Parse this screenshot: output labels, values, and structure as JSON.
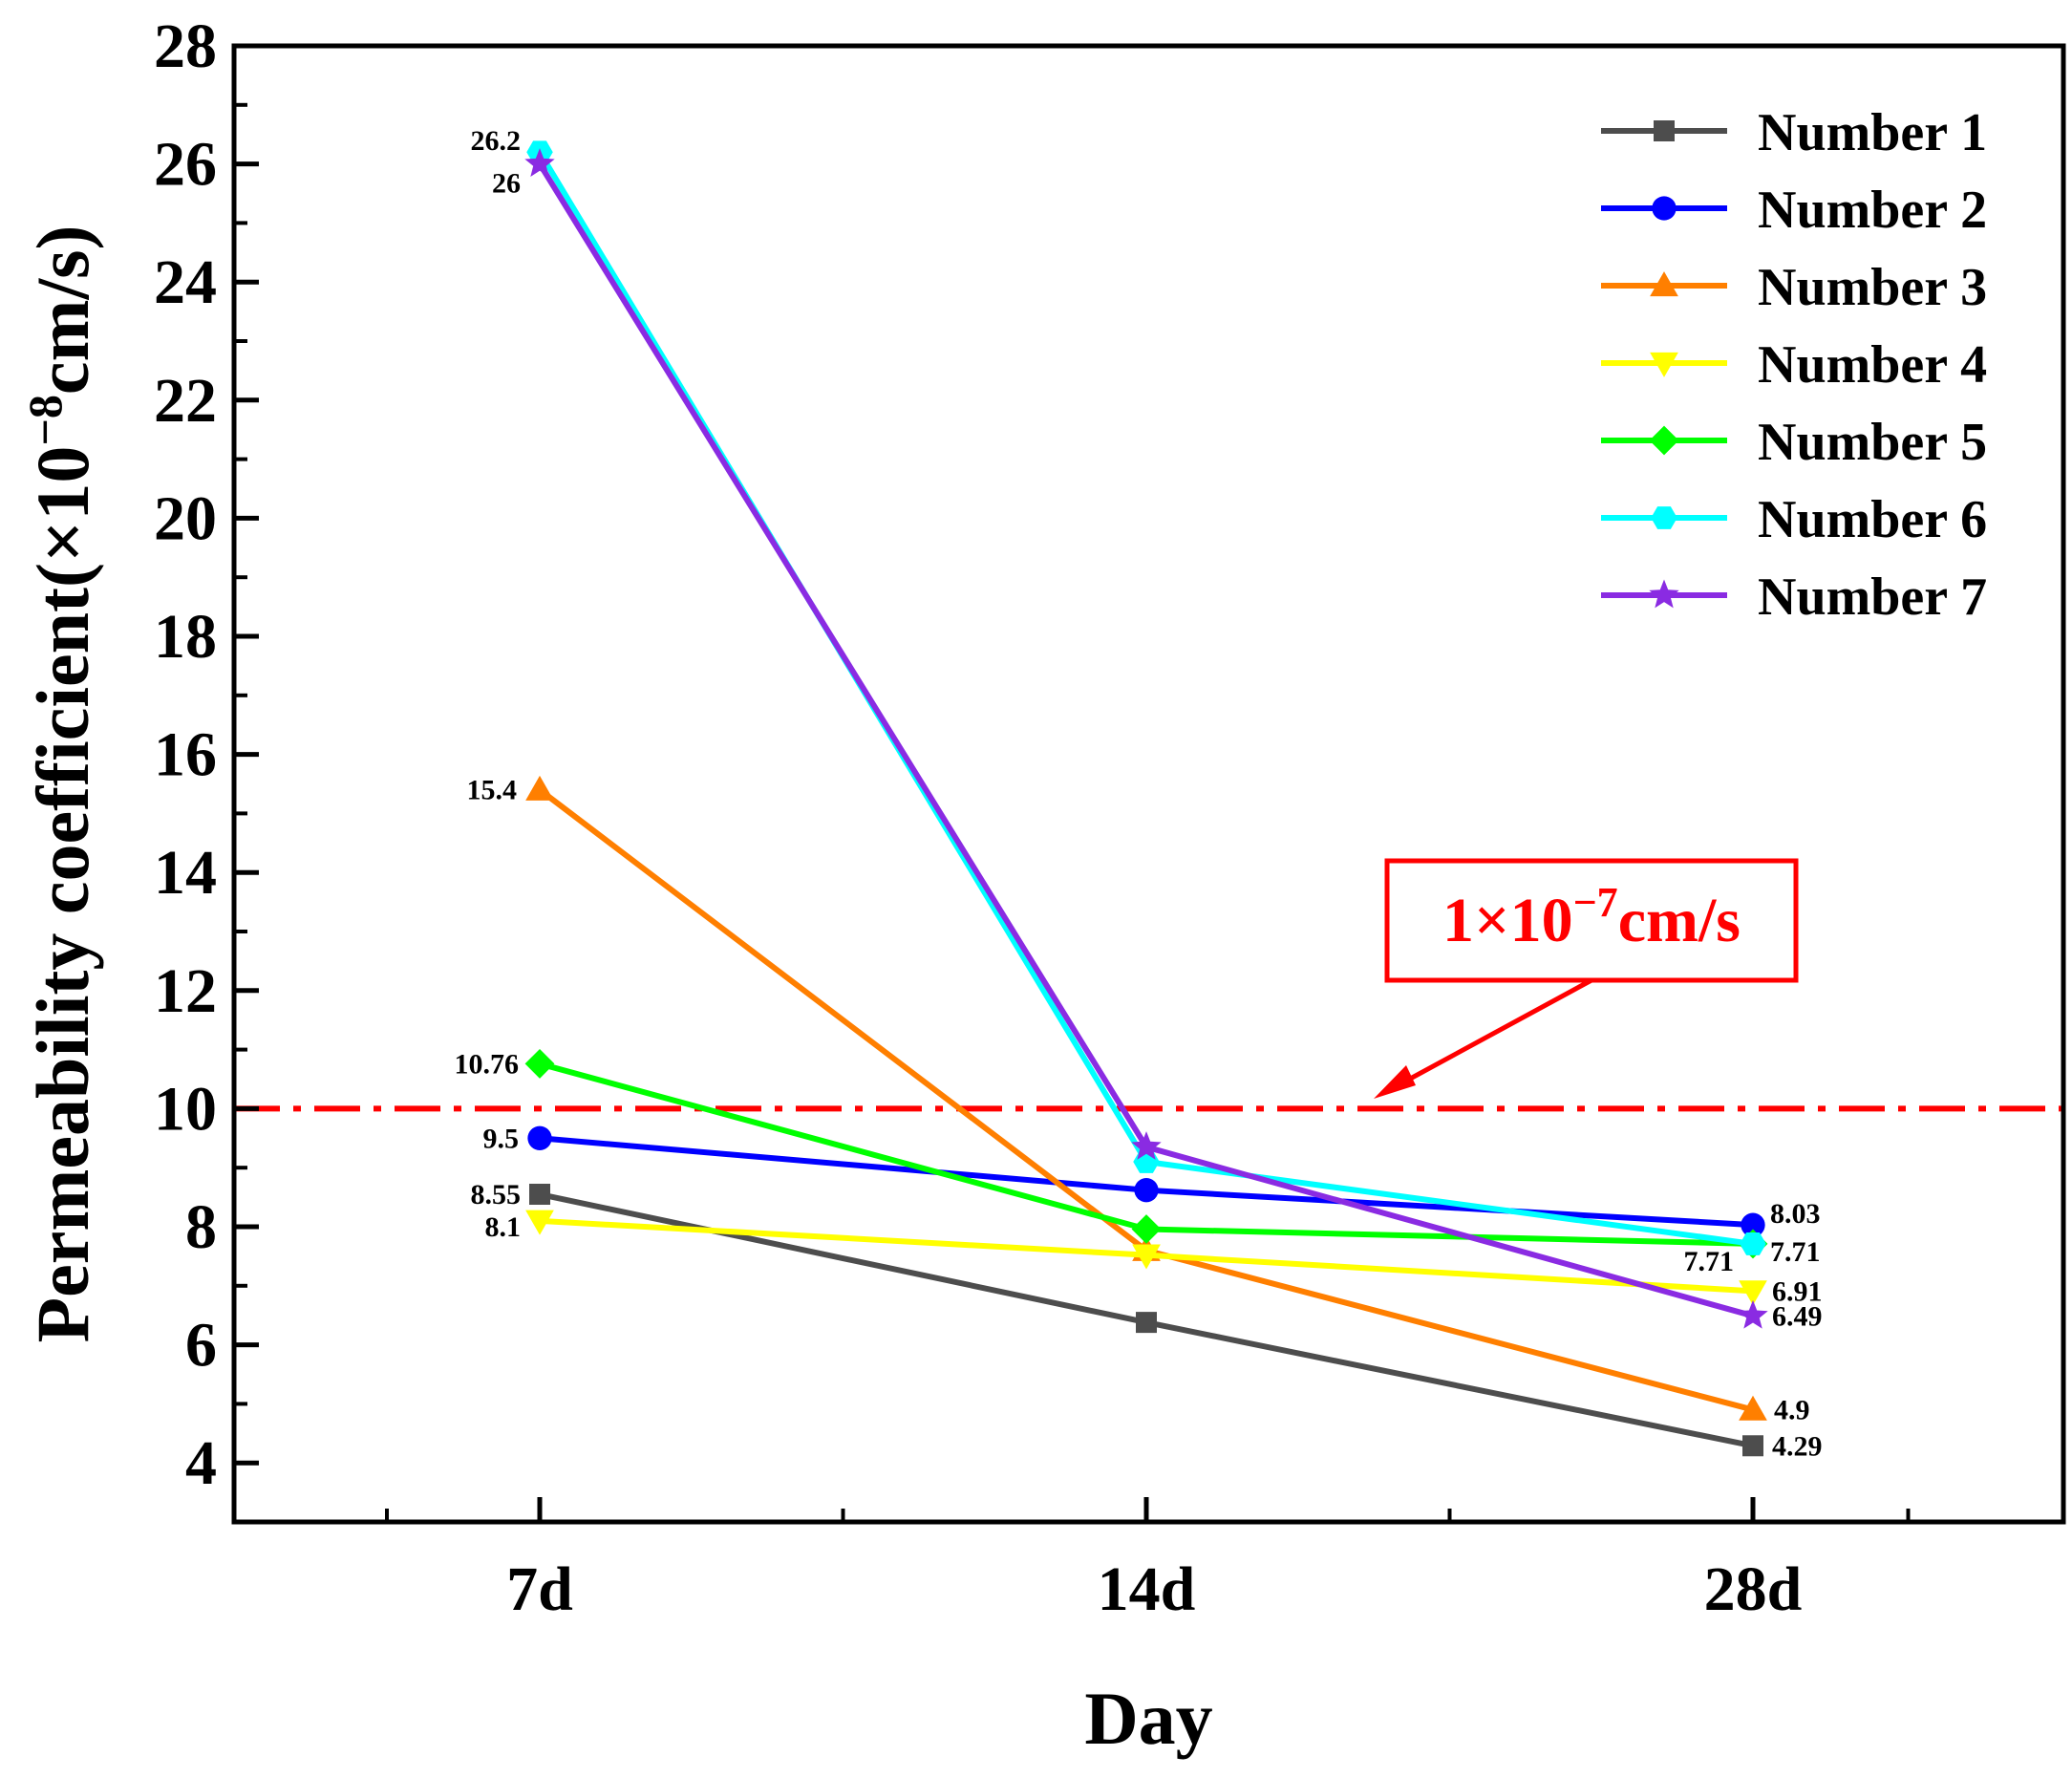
{
  "chart_data": {
    "type": "line",
    "categories": [
      "7d",
      "14d",
      "28d"
    ],
    "xlabel": "Day",
    "ylabel_main": "Permeability coefficient(×10",
    "ylabel_exp": "−8",
    "ylabel_unit": "cm/s)",
    "ylim": [
      3,
      28
    ],
    "yticks": [
      4,
      6,
      8,
      10,
      12,
      14,
      16,
      18,
      20,
      22,
      24,
      26,
      28
    ],
    "ytick_labels": [
      "4",
      "6",
      "8",
      "10",
      "12",
      "14",
      "16",
      "18",
      "20",
      "22",
      "24",
      "26",
      "28"
    ],
    "grid": false,
    "legend_position": "top-right",
    "series": [
      {
        "name": "Number 1",
        "color": "#4d4d4d",
        "marker": "square",
        "values": [
          8.55,
          6.38,
          4.29
        ]
      },
      {
        "name": "Number 2",
        "color": "#0000ff",
        "marker": "circle",
        "values": [
          9.5,
          8.62,
          8.03
        ]
      },
      {
        "name": "Number 3",
        "color": "#ff7f00",
        "marker": "triangle-up",
        "values": [
          15.4,
          7.6,
          4.9
        ]
      },
      {
        "name": "Number 4",
        "color": "#ffff00",
        "marker": "triangle-down",
        "values": [
          8.1,
          7.52,
          6.91
        ]
      },
      {
        "name": "Number 5",
        "color": "#00ff00",
        "marker": "diamond",
        "values": [
          10.76,
          7.96,
          7.71
        ]
      },
      {
        "name": "Number 6",
        "color": "#00ffff",
        "marker": "hexagon",
        "values": [
          26.2,
          9.1,
          7.71
        ]
      },
      {
        "name": "Number 7",
        "color": "#8a2be2",
        "marker": "star",
        "values": [
          26.0,
          9.35,
          6.49
        ]
      }
    ],
    "data_labels": [
      {
        "text": "26.2",
        "series": 5,
        "point": 0
      },
      {
        "text": "26",
        "series": 6,
        "point": 0
      },
      {
        "text": "15.4",
        "series": 2,
        "point": 0
      },
      {
        "text": "10.76",
        "series": 4,
        "point": 0
      },
      {
        "text": "9.5",
        "series": 1,
        "point": 0
      },
      {
        "text": "8.55",
        "series": 0,
        "point": 0
      },
      {
        "text": "8.1",
        "series": 3,
        "point": 0
      },
      {
        "text": "8.03",
        "series": 1,
        "point": 2
      },
      {
        "text": "7.71",
        "series": 4,
        "point": 2
      },
      {
        "text": "7.71",
        "series": 5,
        "point": 2
      },
      {
        "text": "6.91",
        "series": 3,
        "point": 2
      },
      {
        "text": "6.49",
        "series": 6,
        "point": 2
      },
      {
        "text": "4.9",
        "series": 2,
        "point": 2
      },
      {
        "text": "4.29",
        "series": 0,
        "point": 2
      }
    ],
    "reference_line": {
      "y": 10,
      "color": "#ff0000",
      "style": "dash-dot"
    },
    "annotation": {
      "main": "1×10",
      "exp": "−7",
      "unit": "cm/s",
      "color": "#ff0000"
    }
  }
}
